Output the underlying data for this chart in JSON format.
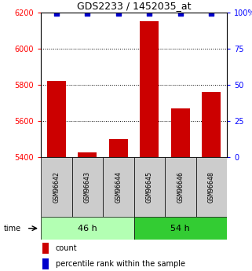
{
  "title": "GDS2233 / 1452035_at",
  "samples": [
    "GSM96642",
    "GSM96643",
    "GSM96644",
    "GSM96645",
    "GSM96646",
    "GSM96648"
  ],
  "count_values": [
    5820,
    5425,
    5500,
    6150,
    5670,
    5760
  ],
  "percentile_values": [
    99,
    99,
    99,
    99,
    99,
    99
  ],
  "ylim_left": [
    5400,
    6200
  ],
  "ylim_right": [
    0,
    100
  ],
  "yticks_left": [
    5400,
    5600,
    5800,
    6000,
    6200
  ],
  "yticks_right": [
    0,
    25,
    50,
    75,
    100
  ],
  "groups": [
    {
      "label": "46 h",
      "indices": [
        0,
        1,
        2
      ],
      "color": "#b3ffb3"
    },
    {
      "label": "54 h",
      "indices": [
        3,
        4,
        5
      ],
      "color": "#33cc33"
    }
  ],
  "bar_color": "#cc0000",
  "percentile_color": "#0000cc",
  "bar_width": 0.6,
  "sample_box_color": "#cccccc",
  "time_label": "time",
  "legend_count_label": "count",
  "legend_percentile_label": "percentile rank within the sample",
  "title_fontsize": 9,
  "tick_fontsize": 7,
  "sample_fontsize": 6,
  "group_fontsize": 8,
  "legend_fontsize": 7
}
